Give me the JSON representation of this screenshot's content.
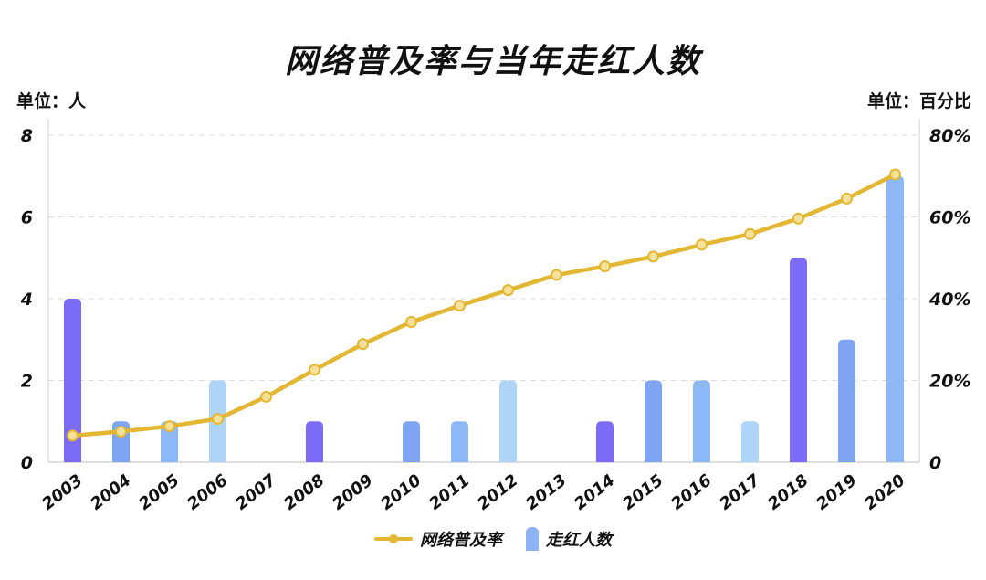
{
  "title": "网络普及率与当年走红人数",
  "left_unit": "单位：人",
  "right_unit": "单位：百分比",
  "legend": {
    "line_label": "网络普及率",
    "bar_label": "走红人数"
  },
  "colors": {
    "line": "#e3b733",
    "bar_purple": "#7b6bf7",
    "bar_blue": "#7fa4f2",
    "bar_mid": "#8db8f7",
    "bar_light": "#aed4f7"
  },
  "chart_data": {
    "type": "bar+line",
    "title": "网络普及率与当年走红人数",
    "categories": [
      "2003",
      "2004",
      "2005",
      "2006",
      "2007",
      "2008",
      "2009",
      "2010",
      "2011",
      "2012",
      "2013",
      "2014",
      "2015",
      "2016",
      "2017",
      "2018",
      "2019",
      "2020"
    ],
    "left_axis": {
      "unit": "单位：人",
      "ylim": [
        0,
        8
      ],
      "ticks": [
        "0",
        "2",
        "4",
        "6",
        "8"
      ]
    },
    "right_axis": {
      "unit": "单位：百分比",
      "ylim": [
        0,
        80
      ],
      "ticks": [
        "0",
        "20%",
        "40%",
        "60%",
        "80%"
      ]
    },
    "series": [
      {
        "name": "走红人数",
        "type": "bar",
        "axis": "left",
        "values": [
          4,
          1,
          1,
          2,
          0,
          1,
          0,
          1,
          1,
          2,
          0,
          1,
          2,
          2,
          1,
          5,
          3,
          7
        ],
        "bar_colors": [
          "#7b6bf7",
          "#7fa4f2",
          "#8db8f7",
          "#aed4f7",
          "#7b6bf7",
          "#7b6bf7",
          "#7b6bf7",
          "#7fa4f2",
          "#8db8f7",
          "#aed4f7",
          "#7b6bf7",
          "#7b6bf7",
          "#7fa4f2",
          "#8db8f7",
          "#aed4f7",
          "#7b6bf7",
          "#7fa4f2",
          "#8db8f7"
        ]
      },
      {
        "name": "网络普及率",
        "type": "line",
        "axis": "right",
        "values": [
          6.5,
          7.5,
          8.8,
          10.6,
          16.0,
          22.6,
          28.9,
          34.3,
          38.3,
          42.1,
          45.8,
          47.9,
          50.3,
          53.2,
          55.8,
          59.6,
          64.5,
          70.4
        ]
      }
    ],
    "grid": true,
    "legend_position": "bottom"
  }
}
